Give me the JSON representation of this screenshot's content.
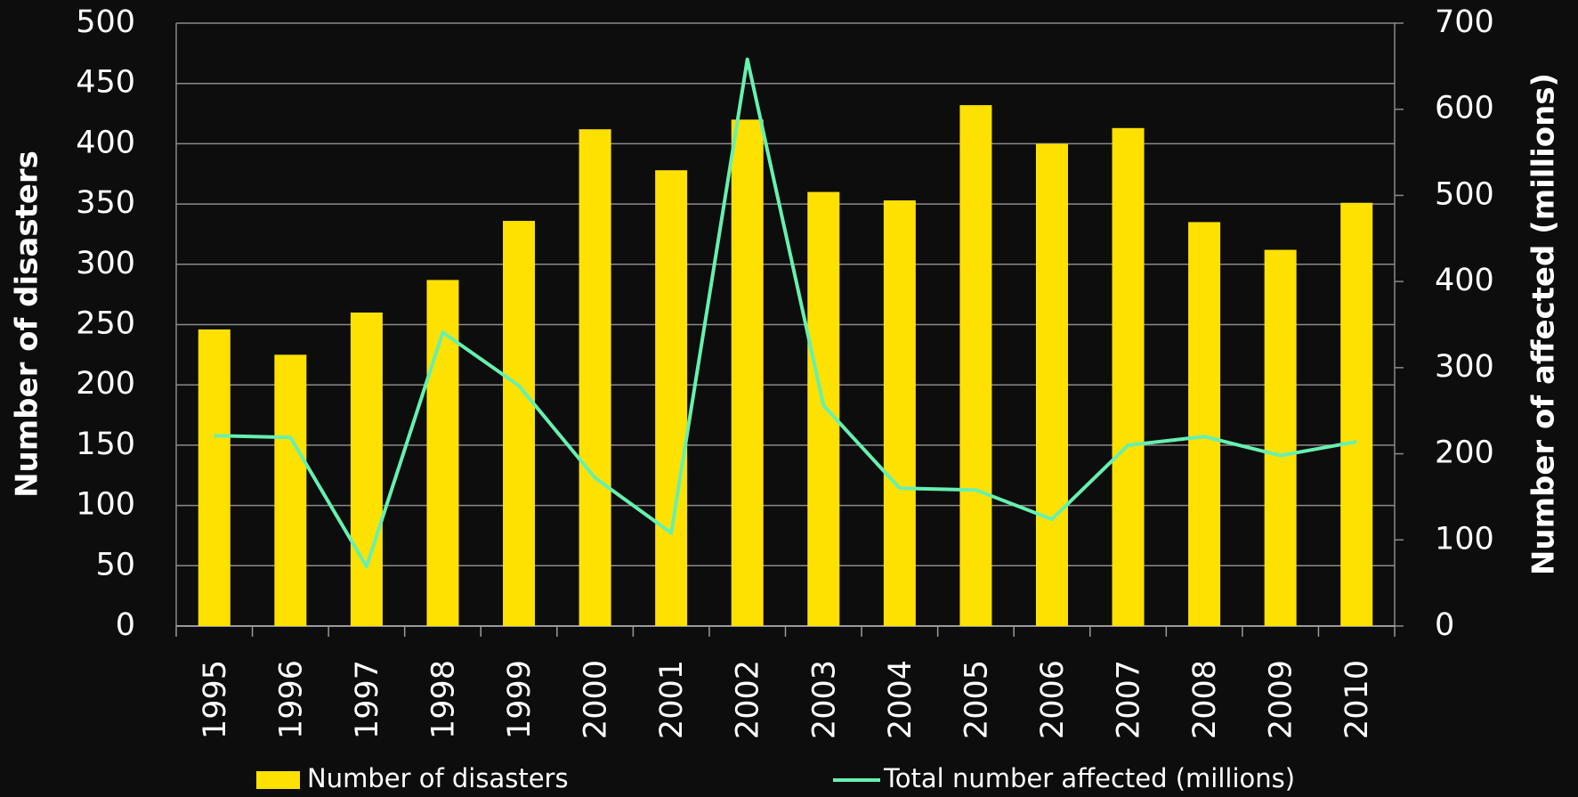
{
  "chart_data": {
    "type": "bar_line",
    "categories": [
      "1995",
      "1996",
      "1997",
      "1998",
      "1999",
      "2000",
      "2001",
      "2002",
      "2003",
      "2004",
      "2005",
      "2006",
      "2007",
      "2008",
      "2009",
      "2010"
    ],
    "series": [
      {
        "name": "Number of disasters",
        "type": "bar",
        "color": "#ffe100",
        "values": [
          246,
          225,
          260,
          287,
          336,
          412,
          378,
          420,
          360,
          353,
          432,
          400,
          413,
          335,
          312,
          351
        ]
      },
      {
        "name": "Total number affected (millions)",
        "type": "line",
        "axis": "y2",
        "color": "#66f0b0",
        "values": [
          221,
          219,
          69,
          341,
          279,
          172,
          108,
          658,
          256,
          160,
          158,
          124,
          210,
          220,
          198,
          214
        ]
      }
    ],
    "ylabel": "Number of disasters",
    "y2label": "Number of affected (millions)",
    "ylim": [
      0,
      500
    ],
    "yticks": [
      0,
      50,
      100,
      150,
      200,
      250,
      300,
      350,
      400,
      450,
      500
    ],
    "y2lim": [
      0,
      700
    ],
    "y2ticks": [
      0,
      100,
      200,
      300,
      400,
      500,
      600,
      700
    ],
    "grid": true,
    "legend": "bottom"
  }
}
